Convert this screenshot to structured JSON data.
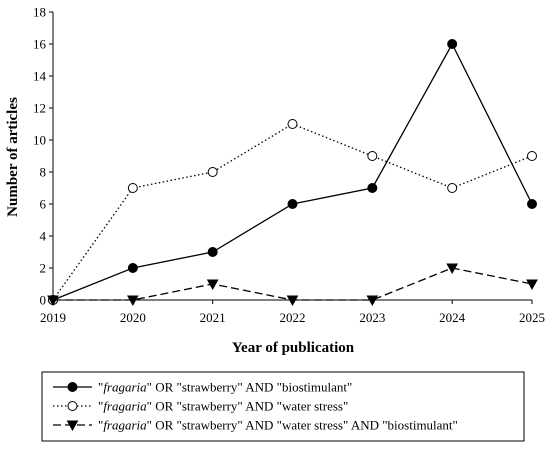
{
  "chart_data": {
    "type": "line",
    "title": "",
    "xlabel": "Year of publication",
    "ylabel": "Number of articles",
    "x": [
      "2019",
      "2020",
      "2021",
      "2022",
      "2023",
      "2024",
      "2025"
    ],
    "ylim": [
      0,
      18
    ],
    "yticks": [
      "0",
      "2",
      "4",
      "6",
      "8",
      "10",
      "12",
      "14",
      "16",
      "18"
    ],
    "grid": false,
    "legend_position": "bottom",
    "series": [
      {
        "name": "\"fragaria\" OR \"strawberry\" AND \"biostimulant\"",
        "name_parts": [
          "\"",
          "fragaria",
          "\" OR \"strawberry\" AND \"biostimulant\""
        ],
        "values": [
          0,
          2,
          3,
          6,
          7,
          16,
          6
        ],
        "line_style": "solid",
        "marker": "filled-circle",
        "color": "#000000"
      },
      {
        "name": "\"fragaria\" OR \"strawberry\" AND \"water stress\"",
        "name_parts": [
          "\"",
          "fragaria",
          "\" OR \"strawberry\" AND \"water stress\""
        ],
        "values": [
          0,
          7,
          8,
          11,
          9,
          7,
          9
        ],
        "line_style": "dotted",
        "marker": "open-circle",
        "color": "#000000"
      },
      {
        "name": "\"fragaria\" OR \"strawberry\" AND \"water stress\" AND \"biostimulant\"",
        "name_parts": [
          "\"",
          "fragaria",
          "\" OR \"strawberry\" AND \"water stress\" AND \"biostimulant\""
        ],
        "values": [
          0,
          0,
          1,
          0,
          0,
          2,
          1
        ],
        "line_style": "dashed",
        "marker": "filled-triangle-down",
        "color": "#000000"
      }
    ]
  }
}
